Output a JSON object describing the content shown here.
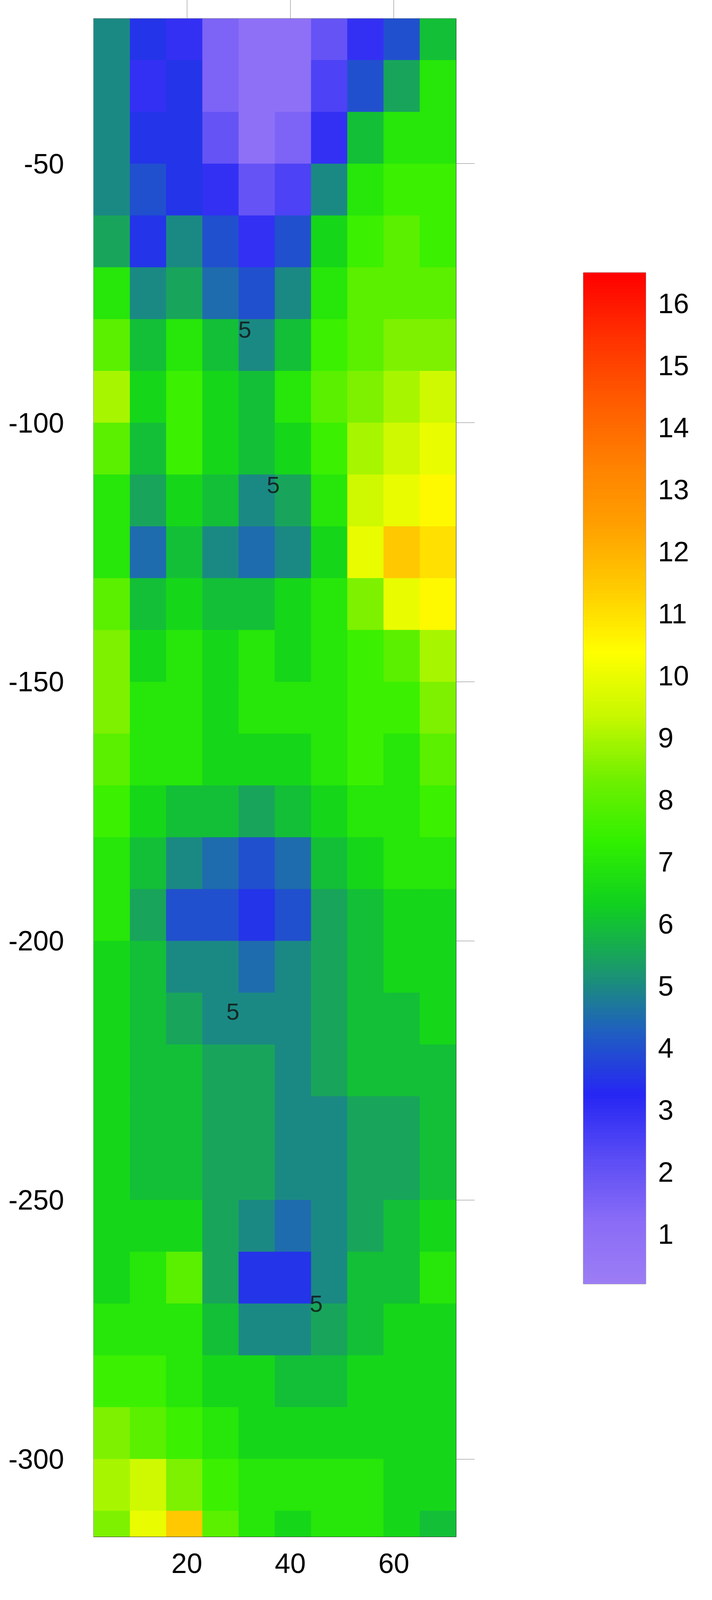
{
  "chart_data": {
    "type": "heatmap",
    "xlim": [
      2,
      72
    ],
    "xticks": [
      20,
      40,
      60
    ],
    "ylim": [
      -315,
      -22
    ],
    "yticks": [
      -300,
      -250,
      -200,
      -150,
      -100,
      -50
    ],
    "x": [
      5.5,
      12.5,
      19.5,
      26.5,
      33.5,
      40.5,
      47.5,
      54.5,
      61.5,
      68.5
    ],
    "y": [
      -25,
      -35,
      -45,
      -55,
      -65,
      -75,
      -85,
      -95,
      -105,
      -115,
      -125,
      -135,
      -145,
      -155,
      -165,
      -175,
      -185,
      -195,
      -205,
      -215,
      -225,
      -235,
      -245,
      -255,
      -265,
      -275,
      -285,
      -295,
      -305,
      -315
    ],
    "z": [
      [
        5,
        3.5,
        3,
        1.5,
        1,
        1,
        2,
        3,
        4,
        6
      ],
      [
        5,
        3,
        3.5,
        1.5,
        1,
        1,
        2.5,
        4,
        5.5,
        7
      ],
      [
        5,
        3.5,
        3.5,
        2,
        1,
        1.5,
        3,
        6,
        7,
        7
      ],
      [
        5,
        4,
        3.5,
        3,
        2,
        2.5,
        5,
        7,
        7.5,
        7.5
      ],
      [
        5.5,
        3.5,
        5,
        4,
        3,
        4,
        6.5,
        7.5,
        8,
        7.5
      ],
      [
        7,
        5,
        5.5,
        4.5,
        4,
        5,
        7,
        8,
        8,
        8
      ],
      [
        8,
        6,
        7,
        6,
        5,
        6,
        7.5,
        8,
        8.5,
        8.5
      ],
      [
        9,
        6.5,
        7.5,
        6.5,
        6,
        7,
        8,
        8.5,
        9,
        9.5
      ],
      [
        8,
        6,
        7.5,
        6.5,
        6,
        6.5,
        7.5,
        9,
        9.5,
        10
      ],
      [
        7,
        5.5,
        6.5,
        6,
        5,
        5.5,
        7,
        9.5,
        10,
        10.5
      ],
      [
        7,
        4.5,
        6,
        5,
        4.5,
        5,
        6.5,
        10,
        11.5,
        11
      ],
      [
        8,
        6,
        6.5,
        6,
        6,
        6.5,
        7,
        8.5,
        10,
        10.5
      ],
      [
        8.5,
        6.5,
        7,
        6.5,
        7,
        6.5,
        7,
        7.5,
        8,
        9
      ],
      [
        8.5,
        7,
        7,
        6.5,
        7,
        7,
        7,
        7.5,
        7.5,
        8.5
      ],
      [
        8,
        7,
        7,
        6.5,
        6.5,
        6.5,
        7,
        7.5,
        7,
        8
      ],
      [
        7.5,
        6.5,
        6,
        6,
        5.5,
        6,
        6.5,
        7,
        7,
        7.5
      ],
      [
        7,
        6,
        5,
        4.5,
        4,
        4.5,
        6,
        6.5,
        7,
        7
      ],
      [
        7,
        5.5,
        4,
        4,
        3.5,
        4,
        5.5,
        6,
        6.5,
        6.5
      ],
      [
        6.5,
        6,
        5,
        5,
        4.5,
        5,
        5.5,
        6,
        6.5,
        6.5
      ],
      [
        6.5,
        6,
        5.5,
        5,
        5,
        5,
        5.5,
        6,
        6,
        6.5
      ],
      [
        6.5,
        6,
        6,
        5.5,
        5.5,
        5,
        5.5,
        6,
        6,
        6
      ],
      [
        6.5,
        6,
        6,
        5.5,
        5.5,
        5,
        5,
        5.5,
        5.5,
        6
      ],
      [
        6.5,
        6,
        6,
        5.5,
        5.5,
        5,
        5,
        5.5,
        5.5,
        6
      ],
      [
        6.5,
        6.5,
        6.5,
        5.5,
        5,
        4.5,
        5,
        5.5,
        6,
        6.5
      ],
      [
        6.5,
        7,
        8,
        5.5,
        3.5,
        3.5,
        5,
        6,
        6,
        7
      ],
      [
        7,
        7,
        7,
        6,
        5,
        5,
        5.5,
        6,
        6.5,
        6.5
      ],
      [
        7.5,
        7.5,
        7,
        6.5,
        6.5,
        6,
        6,
        6.5,
        6.5,
        6.5
      ],
      [
        8.5,
        8,
        7.5,
        7,
        6.5,
        6.5,
        6.5,
        6.5,
        6.5,
        6.5
      ],
      [
        9,
        9.5,
        8.5,
        7.5,
        7,
        7,
        7,
        7,
        6.5,
        6.5
      ],
      [
        8.5,
        10,
        11.5,
        8,
        7,
        6.5,
        7,
        7,
        6.5,
        6
      ]
    ],
    "color_bar": {
      "range": [
        0.2,
        16.5
      ],
      "ticks": [
        1,
        2,
        3,
        4,
        5,
        6,
        7,
        8,
        9,
        10,
        11,
        12,
        13,
        14,
        15,
        16
      ],
      "colors": [
        "#9d7df5",
        "#8a6cf6",
        "#5a4cf5",
        "#2626f4",
        "#1f5fc0",
        "#1a9a6a",
        "#10d020",
        "#30f000",
        "#70f000",
        "#c8f800",
        "#ffff00",
        "#ffcc00",
        "#ffa000",
        "#ff8000",
        "#ff5a00",
        "#ff3000",
        "#ff0000"
      ]
    },
    "annotations": [
      {
        "text": "5",
        "x": 31.2,
        "y": -82
      },
      {
        "text": "5",
        "x": 36.7,
        "y": -112
      },
      {
        "text": "5",
        "x": 28.9,
        "y": -213.6
      },
      {
        "text": "5",
        "x": 45,
        "y": -270
      }
    ]
  }
}
